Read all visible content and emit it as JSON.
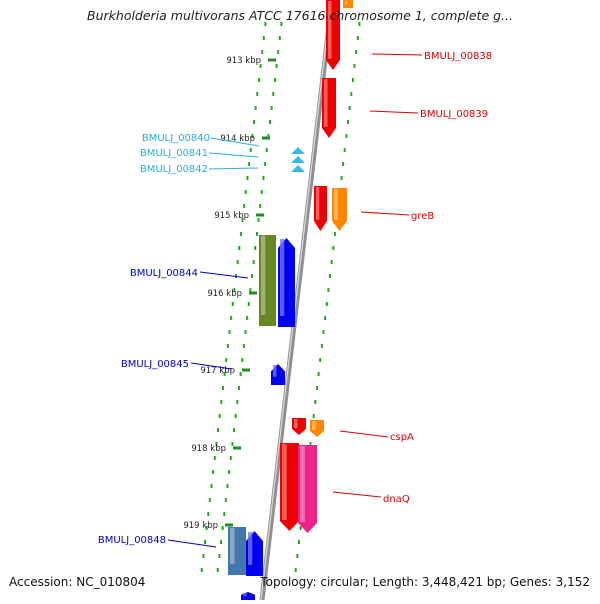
{
  "title": "Burkholderia multivorans ATCC 17616 chromosome 1, complete g...",
  "footer": {
    "accession": "Accession: NC_010804",
    "summary": "Topology: circular; Length: 3,448,421 bp; Genes: 3,152"
  },
  "ruler": [
    {
      "label": "913 kbp"
    },
    {
      "label": "914 kbp"
    },
    {
      "label": "915 kbp"
    },
    {
      "label": "916 kbp"
    },
    {
      "label": "917 kbp"
    },
    {
      "label": "918 kbp"
    },
    {
      "label": "919 kbp"
    }
  ],
  "genes": [
    {
      "label": "BMULJ_00838",
      "color": "#dd0000",
      "fill": "#ee0000"
    },
    {
      "label": "BMULJ_00839",
      "color": "#dd0000",
      "fill": "#ee0000"
    },
    {
      "label": "BMULJ_00840",
      "color": "#22b0e6",
      "fill": "#33bbee"
    },
    {
      "label": "BMULJ_00841",
      "color": "#22b0e6",
      "fill": "#33bbee"
    },
    {
      "label": "BMULJ_00842",
      "color": "#22b0e6",
      "fill": "#33bbee"
    },
    {
      "label": "greB",
      "color": "#dd0000",
      "fill": "#ee0000"
    },
    {
      "label": "BMULJ_00844",
      "color": "#0000cc",
      "fill": "#0000ee"
    },
    {
      "label": "BMULJ_00845",
      "color": "#0000cc",
      "fill": "#0000ee"
    },
    {
      "label": "cspA",
      "color": "#dd0000",
      "fill": "#ee0000"
    },
    {
      "label": "dnaQ",
      "color": "#dd0000",
      "fill": "#ee0000"
    },
    {
      "label": "BMULJ_00848",
      "color": "#0000cc",
      "fill": "#0000ee"
    }
  ],
  "colors": {
    "backbone": "#909090",
    "dots": "#22aa22",
    "orange": "#ff8800",
    "olive": "#668822",
    "steelblue": "#4477aa",
    "magenta": "#ee2288"
  }
}
